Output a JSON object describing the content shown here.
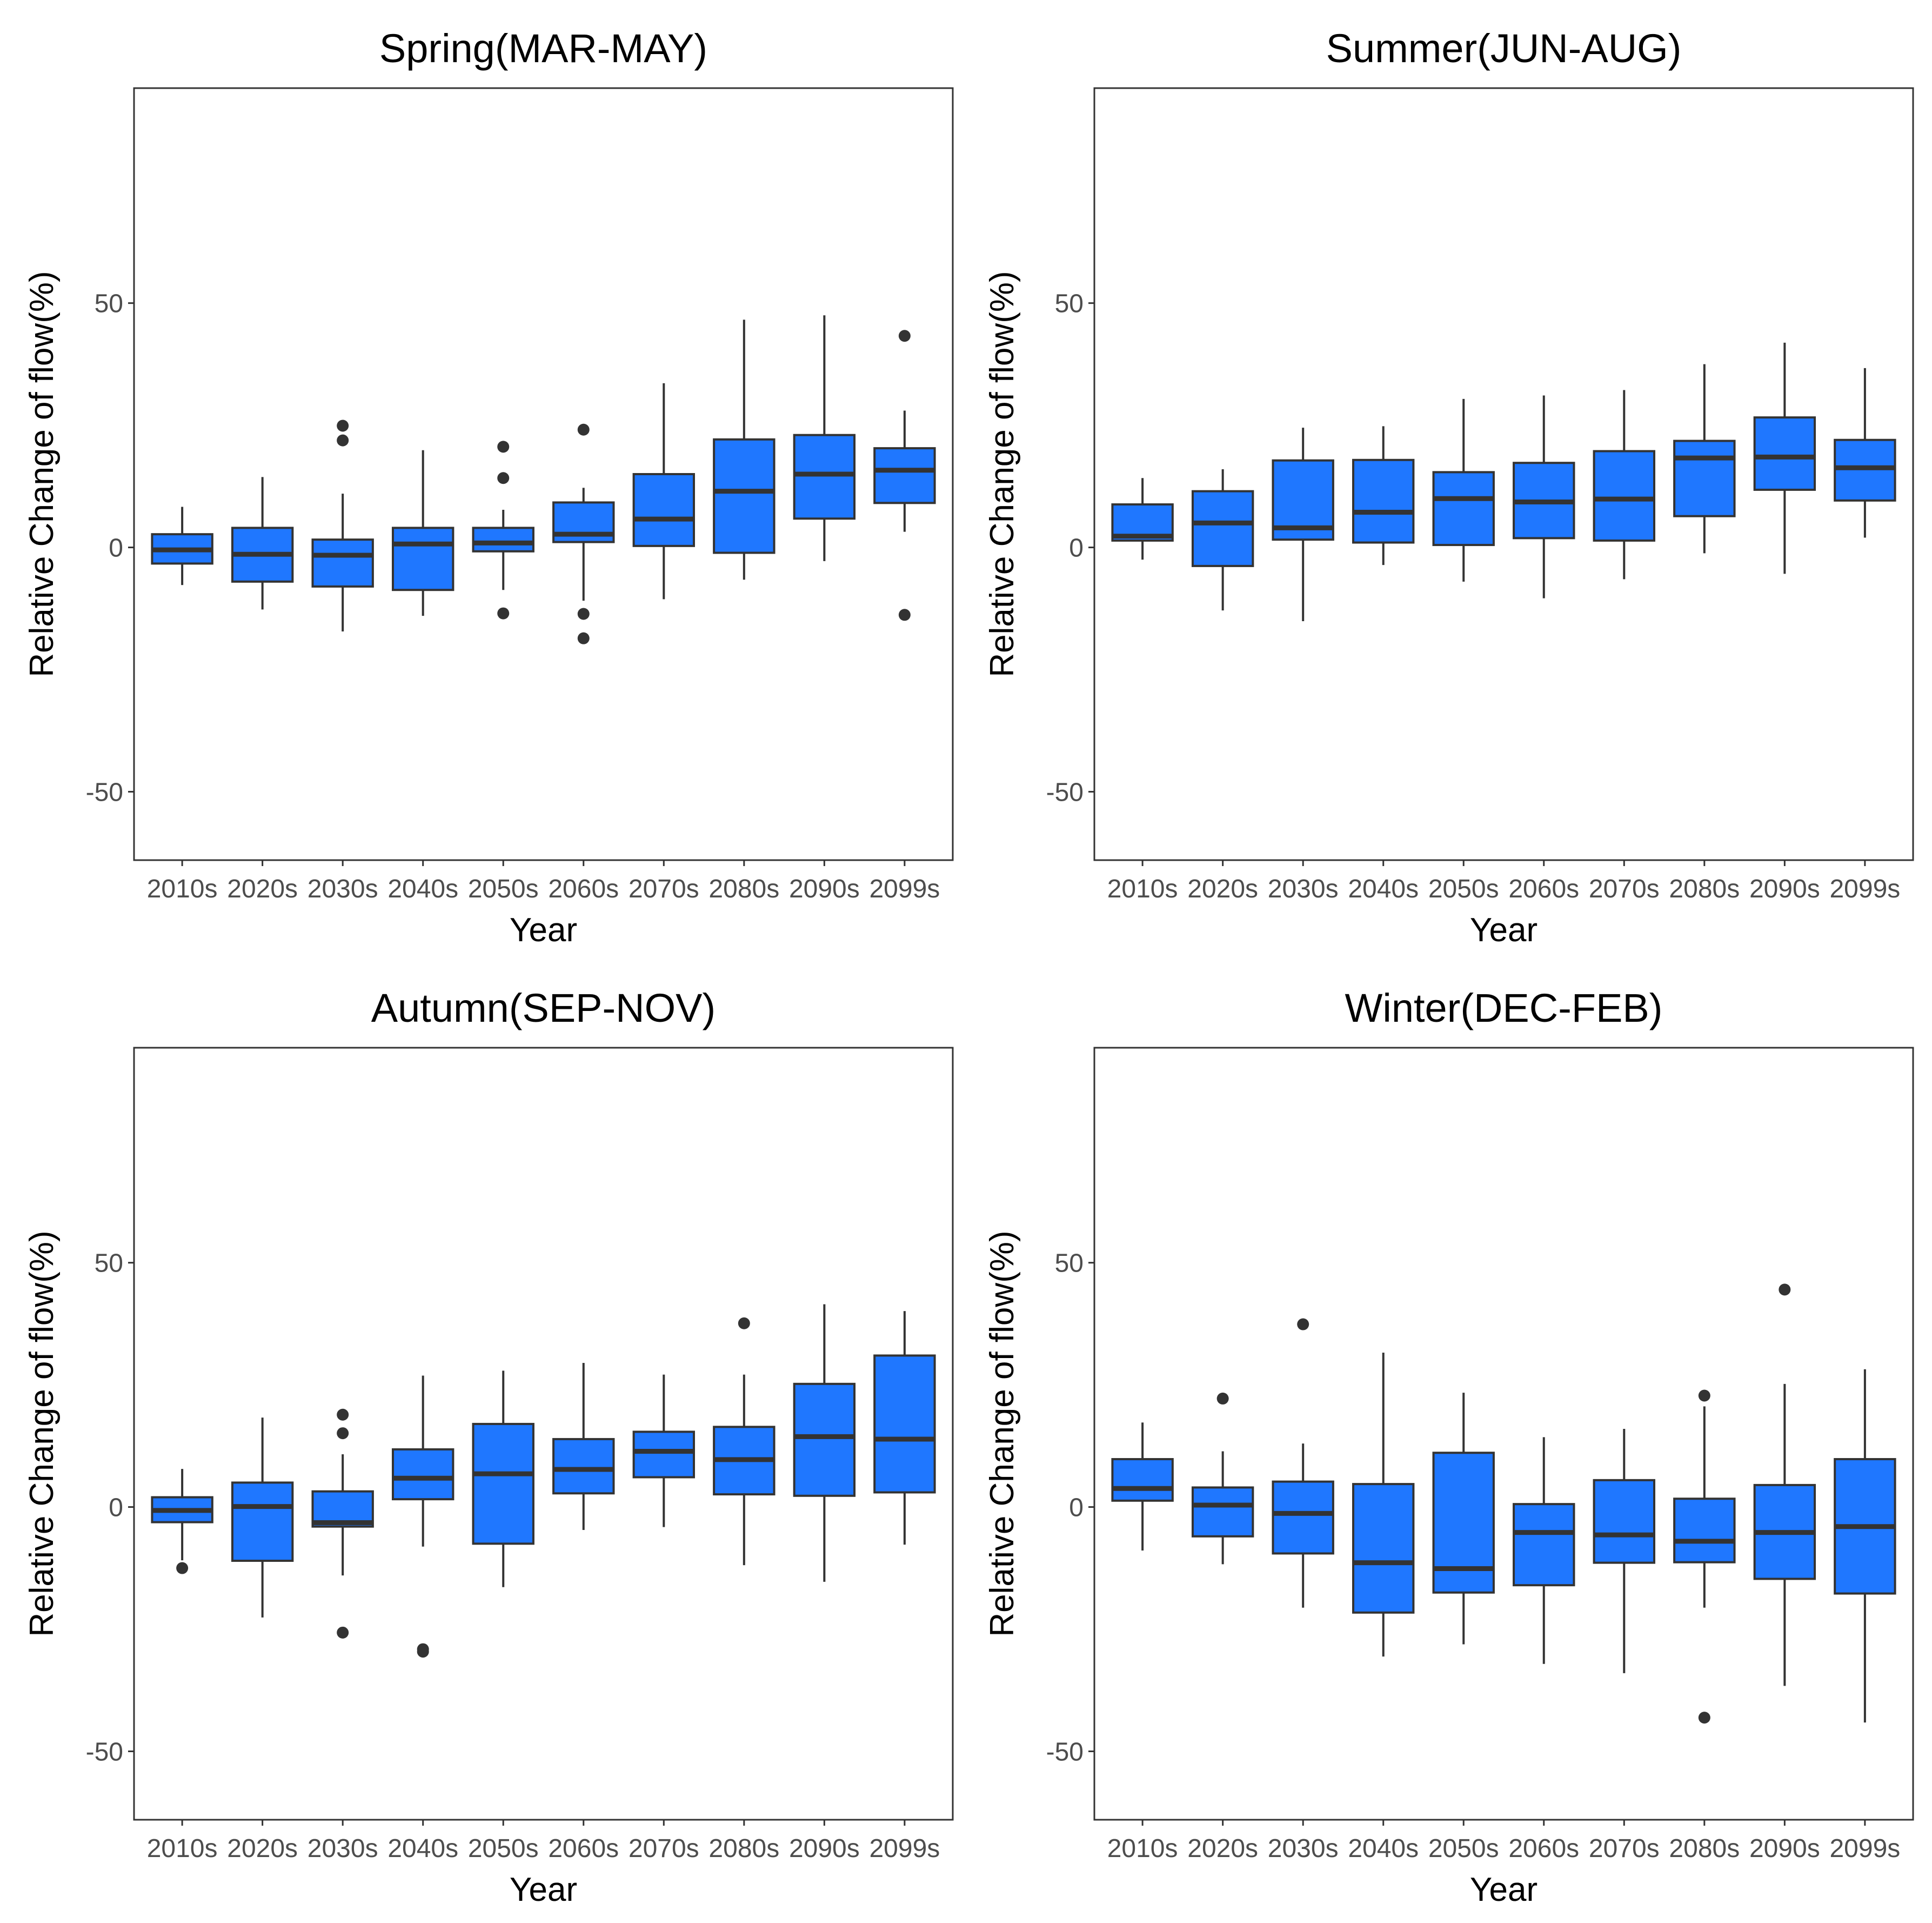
{
  "chart_data": [
    {
      "type": "box",
      "title": "Spring(MAR-MAY)",
      "xlabel": "Year",
      "ylabel": "Relative Change of flow(%)",
      "ylim": [
        -64,
        94
      ],
      "yticks": [
        -50,
        0,
        50
      ],
      "box_color": "#1f77ff",
      "categories": [
        "2010s",
        "2020s",
        "2030s",
        "2040s",
        "2050s",
        "2060s",
        "2070s",
        "2080s",
        "2090s",
        "2099s"
      ],
      "boxes": [
        {
          "low": -7.7,
          "q1": -3.3,
          "median": -0.5,
          "q3": 2.7,
          "high": 8.3,
          "outliers": []
        },
        {
          "low": -12.7,
          "q1": -7.0,
          "median": -1.4,
          "q3": 4.0,
          "high": 14.4,
          "outliers": []
        },
        {
          "low": -17.2,
          "q1": -8.0,
          "median": -1.6,
          "q3": 1.6,
          "high": 11.0,
          "outliers": [
            24.9,
            21.9
          ]
        },
        {
          "low": -14.0,
          "q1": -8.7,
          "median": 0.7,
          "q3": 4.0,
          "high": 19.9,
          "outliers": []
        },
        {
          "low": -8.7,
          "q1": -0.8,
          "median": 0.9,
          "q3": 4.0,
          "high": 7.7,
          "outliers": [
            20.6,
            14.2,
            -13.5
          ]
        },
        {
          "low": -10.9,
          "q1": 1.1,
          "median": 2.7,
          "q3": 9.2,
          "high": 12.2,
          "outliers": [
            24.1,
            -13.6,
            -18.6
          ]
        },
        {
          "low": -10.6,
          "q1": 0.3,
          "median": 5.8,
          "q3": 15.0,
          "high": 33.6,
          "outliers": []
        },
        {
          "low": -6.6,
          "q1": -1.1,
          "median": 11.5,
          "q3": 22.1,
          "high": 46.6,
          "outliers": []
        },
        {
          "low": -2.8,
          "q1": 5.9,
          "median": 15.0,
          "q3": 23.0,
          "high": 47.5,
          "outliers": []
        },
        {
          "low": 3.2,
          "q1": 9.1,
          "median": 15.8,
          "q3": 20.3,
          "high": 28.0,
          "outliers": [
            43.3,
            -13.8
          ]
        }
      ]
    },
    {
      "type": "box",
      "title": "Summer(JUN-AUG)",
      "xlabel": "Year",
      "ylabel": "Relative Change of flow(%)",
      "ylim": [
        -64,
        94
      ],
      "yticks": [
        -50,
        0,
        50
      ],
      "box_color": "#1f77ff",
      "categories": [
        "2010s",
        "2020s",
        "2030s",
        "2040s",
        "2050s",
        "2060s",
        "2070s",
        "2080s",
        "2090s",
        "2099s"
      ],
      "boxes": [
        {
          "low": -2.5,
          "q1": 1.4,
          "median": 2.3,
          "q3": 8.8,
          "high": 14.2,
          "outliers": []
        },
        {
          "low": -12.9,
          "q1": -3.8,
          "median": 5.0,
          "q3": 11.5,
          "high": 16.0,
          "outliers": []
        },
        {
          "low": -15.1,
          "q1": 1.6,
          "median": 4.0,
          "q3": 17.8,
          "high": 24.5,
          "outliers": []
        },
        {
          "low": -3.6,
          "q1": 1.0,
          "median": 7.2,
          "q3": 17.9,
          "high": 24.8,
          "outliers": []
        },
        {
          "low": -7.0,
          "q1": 0.5,
          "median": 10.0,
          "q3": 15.4,
          "high": 30.4,
          "outliers": []
        },
        {
          "low": -10.4,
          "q1": 1.9,
          "median": 9.3,
          "q3": 17.3,
          "high": 31.1,
          "outliers": []
        },
        {
          "low": -6.5,
          "q1": 1.4,
          "median": 9.9,
          "q3": 19.7,
          "high": 32.2,
          "outliers": []
        },
        {
          "low": -1.2,
          "q1": 6.4,
          "median": 18.3,
          "q3": 21.8,
          "high": 37.5,
          "outliers": []
        },
        {
          "low": -5.4,
          "q1": 11.8,
          "median": 18.5,
          "q3": 26.6,
          "high": 41.9,
          "outliers": []
        },
        {
          "low": 2.0,
          "q1": 9.6,
          "median": 16.3,
          "q3": 22.0,
          "high": 36.7,
          "outliers": []
        }
      ]
    },
    {
      "type": "box",
      "title": "Autumn(SEP-NOV)",
      "xlabel": "Year",
      "ylabel": "Relative Change of flow(%)",
      "ylim": [
        -64,
        94
      ],
      "yticks": [
        -50,
        0,
        50
      ],
      "box_color": "#1f77ff",
      "categories": [
        "2010s",
        "2020s",
        "2030s",
        "2040s",
        "2050s",
        "2060s",
        "2070s",
        "2080s",
        "2090s",
        "2099s"
      ],
      "boxes": [
        {
          "low": -10.9,
          "q1": -3.1,
          "median": -0.7,
          "q3": 2.0,
          "high": 7.8,
          "outliers": [
            -12.5
          ]
        },
        {
          "low": -22.6,
          "q1": -11.0,
          "median": 0.1,
          "q3": 5.0,
          "high": 18.3,
          "outliers": []
        },
        {
          "low": -14.0,
          "q1": -4.0,
          "median": -3.2,
          "q3": 3.2,
          "high": 10.8,
          "outliers": [
            18.9,
            15.1,
            -25.7
          ]
        },
        {
          "low": -8.1,
          "q1": 1.6,
          "median": 5.9,
          "q3": 11.8,
          "high": 26.9,
          "outliers": [
            -29.1,
            -29.6
          ]
        },
        {
          "low": -16.4,
          "q1": -7.5,
          "median": 6.8,
          "q3": 17.0,
          "high": 27.9,
          "outliers": []
        },
        {
          "low": -4.7,
          "q1": 2.8,
          "median": 7.7,
          "q3": 13.9,
          "high": 29.5,
          "outliers": []
        },
        {
          "low": -4.1,
          "q1": 6.1,
          "median": 11.4,
          "q3": 15.4,
          "high": 27.1,
          "outliers": []
        },
        {
          "low": -11.9,
          "q1": 2.6,
          "median": 9.7,
          "q3": 16.4,
          "high": 27.1,
          "outliers": [
            37.6
          ]
        },
        {
          "low": -15.3,
          "q1": 2.3,
          "median": 14.4,
          "q3": 25.2,
          "high": 41.5,
          "outliers": []
        },
        {
          "low": -7.7,
          "q1": 3.0,
          "median": 13.9,
          "q3": 31.0,
          "high": 40.1,
          "outliers": []
        }
      ]
    },
    {
      "type": "box",
      "title": "Winter(DEC-FEB)",
      "xlabel": "Year",
      "ylabel": "Relative Change of flow(%)",
      "ylim": [
        -64,
        94
      ],
      "yticks": [
        -50,
        0,
        50
      ],
      "box_color": "#1f77ff",
      "categories": [
        "2010s",
        "2020s",
        "2030s",
        "2040s",
        "2050s",
        "2060s",
        "2070s",
        "2080s",
        "2090s",
        "2099s"
      ],
      "boxes": [
        {
          "low": -8.9,
          "q1": 1.3,
          "median": 3.8,
          "q3": 9.8,
          "high": 17.3,
          "outliers": []
        },
        {
          "low": -11.7,
          "q1": -6.0,
          "median": 0.4,
          "q3": 4.0,
          "high": 11.4,
          "outliers": [
            22.2
          ]
        },
        {
          "low": -20.6,
          "q1": -9.5,
          "median": -1.3,
          "q3": 5.2,
          "high": 13.0,
          "outliers": [
            37.4
          ]
        },
        {
          "low": -30.6,
          "q1": -21.6,
          "median": -11.4,
          "q3": 4.7,
          "high": 31.6,
          "outliers": []
        },
        {
          "low": -28.1,
          "q1": -17.5,
          "median": -12.6,
          "q3": 11.1,
          "high": 23.4,
          "outliers": []
        },
        {
          "low": -32.1,
          "q1": -16.0,
          "median": -5.2,
          "q3": 0.6,
          "high": 14.3,
          "outliers": []
        },
        {
          "low": -34.0,
          "q1": -11.4,
          "median": -5.7,
          "q3": 5.5,
          "high": 16.0,
          "outliers": []
        },
        {
          "low": -20.6,
          "q1": -11.3,
          "median": -7.0,
          "q3": 1.7,
          "high": 20.6,
          "outliers": [
            22.8,
            -43.1
          ]
        },
        {
          "low": -36.6,
          "q1": -14.7,
          "median": -5.2,
          "q3": 4.5,
          "high": 25.2,
          "outliers": [
            44.5
          ]
        },
        {
          "low": -44.1,
          "q1": -17.7,
          "median": -4.0,
          "q3": 9.8,
          "high": 28.2,
          "outliers": []
        }
      ]
    }
  ]
}
